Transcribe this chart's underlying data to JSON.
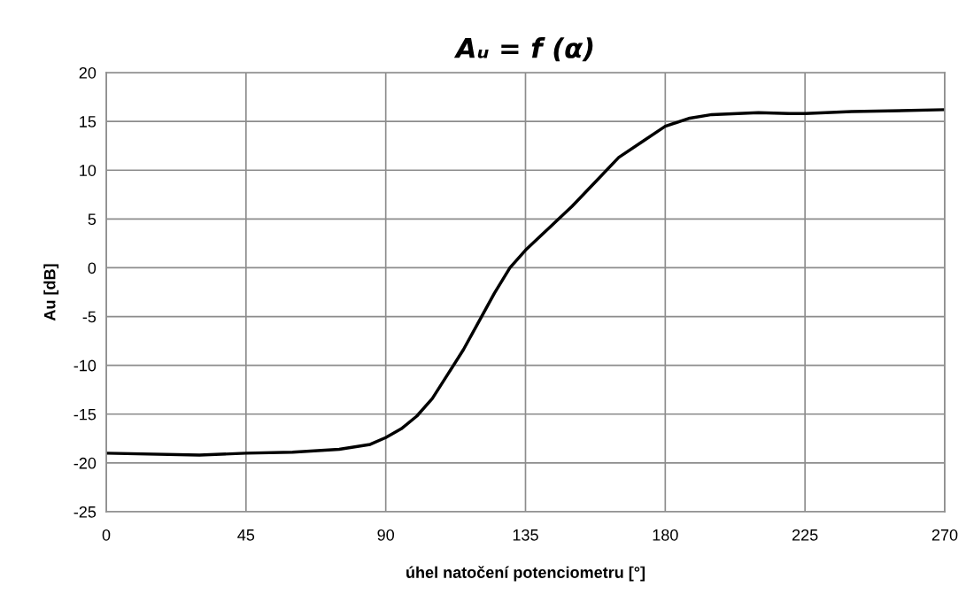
{
  "chart_data": {
    "type": "line",
    "title": "Aᵤ = f (α)",
    "xlabel": "úhel natočení potenciometru [°]",
    "ylabel": "Au [dB]",
    "x": [
      0,
      30,
      45,
      60,
      75,
      85,
      90,
      95,
      100,
      105,
      110,
      115,
      120,
      125,
      130,
      135,
      140,
      145,
      150,
      157.5,
      165,
      172.5,
      180,
      187.5,
      195,
      210,
      220,
      225,
      240,
      270
    ],
    "series": [
      {
        "color": "#000000",
        "values": [
          -19.0,
          -19.2,
          -19.0,
          -18.9,
          -18.6,
          -18.1,
          -17.4,
          -16.5,
          -15.2,
          -13.4,
          -10.9,
          -8.4,
          -5.5,
          -2.6,
          0,
          1.8,
          3.3,
          4.8,
          6.3,
          8.8,
          11.3,
          12.9,
          14.5,
          15.3,
          15.7,
          15.9,
          15.8,
          15.8,
          16.0,
          16.2
        ]
      }
    ],
    "xlim": [
      0,
      270
    ],
    "xticks": [
      0,
      45,
      90,
      135,
      180,
      225,
      270
    ],
    "ylim": [
      -25,
      20
    ],
    "yticks": [
      -25,
      -20,
      -15,
      -10,
      -5,
      0,
      5,
      10,
      15,
      20
    ],
    "grid": true,
    "marker": "none",
    "line_style": "solid",
    "legend": false
  }
}
